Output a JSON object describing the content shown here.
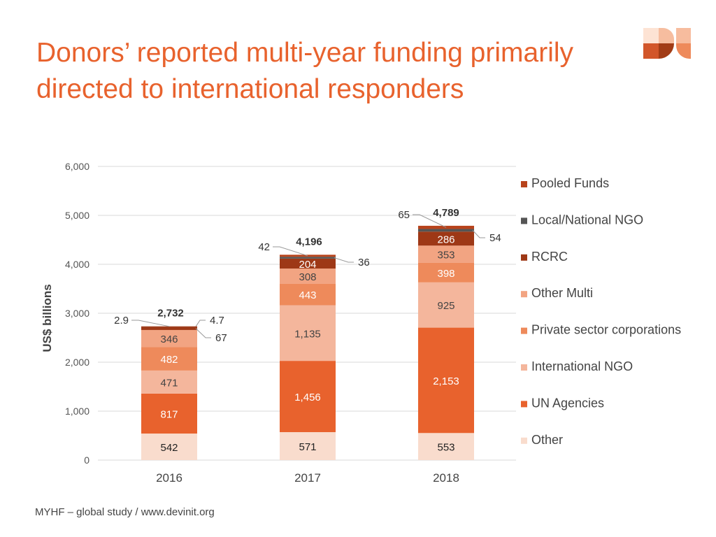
{
  "title": "Donors’ reported multi-year funding primarily directed to international responders",
  "footer": "MYHF – global study / www.devinit.org",
  "logo": "DI",
  "chart_data": {
    "type": "stacked-bar",
    "categories": [
      "2016",
      "2017",
      "2018"
    ],
    "ylabel": "US$ billions",
    "ylim": [
      0,
      6000
    ],
    "yticks": [
      "0",
      "1,000",
      "2,000",
      "3,000",
      "4,000",
      "5,000",
      "6,000"
    ],
    "yticks_values": [
      0,
      1000,
      2000,
      3000,
      4000,
      5000,
      6000
    ],
    "grid": true,
    "legend_position": "right",
    "totals": [
      "2,732",
      "4,196",
      "4,789"
    ],
    "series": [
      {
        "name": "Other",
        "color": "#f9dccd",
        "label_color": "#222",
        "values": [
          542,
          571,
          553
        ],
        "labels": [
          "542",
          "571",
          "553"
        ]
      },
      {
        "name": "UN Agencies",
        "color": "#e8622d",
        "label_color": "#fff",
        "values": [
          817,
          1456,
          2153
        ],
        "labels": [
          "817",
          "1,456",
          "2,153"
        ]
      },
      {
        "name": "International NGO",
        "color": "#f4b69c",
        "label_color": "#444",
        "values": [
          471,
          1135,
          925
        ],
        "labels": [
          "471",
          "1,135",
          "925"
        ]
      },
      {
        "name": "Private sector corporations",
        "color": "#ee8a5b",
        "label_color": "#fff",
        "values": [
          482,
          443,
          398
        ],
        "labels": [
          "482",
          "443",
          "398"
        ]
      },
      {
        "name": "Other Multi",
        "color": "#f2a482",
        "label_color": "#444",
        "values": [
          346,
          308,
          353
        ],
        "labels": [
          "346",
          "308",
          "353"
        ]
      },
      {
        "name": "RCRC",
        "color": "#9e3816",
        "label_color": "#fff",
        "values": [
          67,
          204,
          286
        ],
        "labels": [
          "67",
          "204",
          "286"
        ]
      },
      {
        "name": "Local/National NGO",
        "color": "#555555",
        "label_color": "#333",
        "values": [
          4.7,
          36,
          54
        ],
        "labels": [
          "4.7",
          "36",
          "54"
        ]
      },
      {
        "name": "Pooled Funds",
        "color": "#b8431b",
        "label_color": "#333",
        "values": [
          2.9,
          42,
          65
        ],
        "labels": [
          "2.9",
          "42",
          "65"
        ]
      }
    ]
  }
}
